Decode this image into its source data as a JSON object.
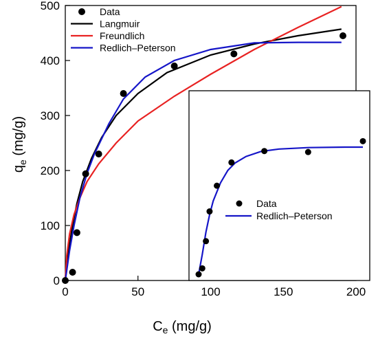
{
  "chart_data": [
    {
      "type": "scatter",
      "xlabel": "Ce (mg/g)",
      "xlabel_main": "C",
      "xlabel_sub": "e",
      "xlabel_unit": " (mg/g)",
      "ylabel": "qe (mg/g)",
      "ylabel_main": "q",
      "ylabel_sub": "e",
      "ylabel_unit": " (mg/g)",
      "xlim": [
        0,
        200
      ],
      "ylim": [
        0,
        500
      ],
      "xticks": [
        "0",
        "50",
        "100",
        "150",
        "200"
      ],
      "yticks": [
        "0",
        "100",
        "200",
        "300",
        "400",
        "500"
      ],
      "grid": false,
      "legend_position": "top-left",
      "series": [
        {
          "name": "Data",
          "kind": "points",
          "color": "#000000",
          "points": [
            [
              0,
              0
            ],
            [
              5,
              15
            ],
            [
              8,
              87
            ],
            [
              14,
              194
            ],
            [
              23,
              230
            ],
            [
              40,
              340
            ],
            [
              75,
              390
            ],
            [
              116,
              412
            ],
            [
              191,
              445
            ]
          ]
        },
        {
          "name": "Langmuir",
          "kind": "line",
          "color": "#000000",
          "points": [
            [
              0,
              0
            ],
            [
              2,
              50
            ],
            [
              5,
              100
            ],
            [
              8,
              140
            ],
            [
              12,
              180
            ],
            [
              18,
              222
            ],
            [
              25,
              260
            ],
            [
              35,
              300
            ],
            [
              50,
              340
            ],
            [
              70,
              378
            ],
            [
              100,
              410
            ],
            [
              130,
              430
            ],
            [
              160,
              445
            ],
            [
              190,
              457
            ]
          ]
        },
        {
          "name": "Freundlich",
          "kind": "line",
          "color": "#e82222",
          "points": [
            [
              0,
              0
            ],
            [
              1,
              45
            ],
            [
              3,
              85
            ],
            [
              6,
              120
            ],
            [
              10,
              150
            ],
            [
              15,
              180
            ],
            [
              23,
              212
            ],
            [
              35,
              250
            ],
            [
              50,
              290
            ],
            [
              75,
              335
            ],
            [
              100,
              375
            ],
            [
              130,
              420
            ],
            [
              160,
              460
            ],
            [
              190,
              498
            ]
          ]
        },
        {
          "name": "Redlich–Peterson",
          "kind": "line",
          "color": "#1515c8",
          "points": [
            [
              0,
              0
            ],
            [
              3,
              55
            ],
            [
              6,
              100
            ],
            [
              10,
              150
            ],
            [
              15,
              195
            ],
            [
              20,
              230
            ],
            [
              30,
              285
            ],
            [
              40,
              330
            ],
            [
              55,
              370
            ],
            [
              75,
              400
            ],
            [
              100,
              420
            ],
            [
              130,
              432
            ],
            [
              160,
              433
            ],
            [
              190,
              433
            ]
          ]
        }
      ]
    },
    {
      "type": "scatter",
      "inset": true,
      "legend_position": "middle",
      "series": [
        {
          "name": "Data",
          "kind": "points",
          "color": "#000000",
          "points": [
            [
              0,
              0
            ],
            [
              1,
              12
            ],
            [
              2,
              67
            ],
            [
              3,
              127
            ],
            [
              5,
              179
            ],
            [
              9,
              226
            ],
            [
              18,
              249
            ],
            [
              30,
              247
            ],
            [
              45,
              269
            ]
          ]
        },
        {
          "name": "Redlich–Peterson",
          "kind": "line",
          "color": "#1515c8",
          "points": [
            [
              0,
              0
            ],
            [
              1,
              40
            ],
            [
              2,
              85
            ],
            [
              3,
              120
            ],
            [
              4,
              148
            ],
            [
              6,
              185
            ],
            [
              8,
              210
            ],
            [
              10,
              225
            ],
            [
              13,
              238
            ],
            [
              17,
              248
            ],
            [
              22,
              253
            ],
            [
              30,
              256
            ],
            [
              40,
              257
            ],
            [
              45,
              257
            ]
          ]
        }
      ]
    }
  ]
}
